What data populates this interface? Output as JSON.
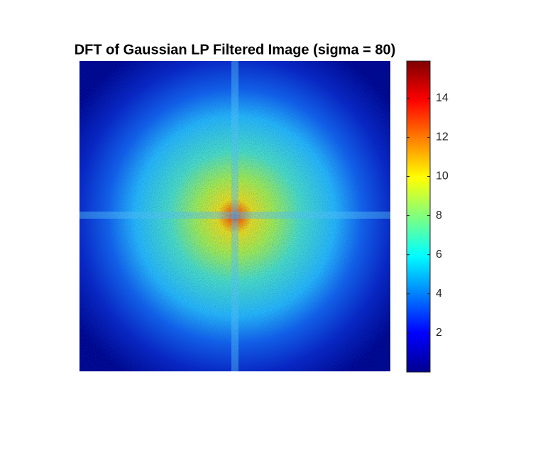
{
  "chart_data": {
    "type": "heatmap",
    "title": "DFT of Gaussian LP Filtered Image (sigma = 80)",
    "colormap": "jet",
    "clim": [
      0,
      15.9
    ],
    "colorbar_ticks": [
      2,
      4,
      6,
      8,
      10,
      12,
      14
    ]
  }
}
